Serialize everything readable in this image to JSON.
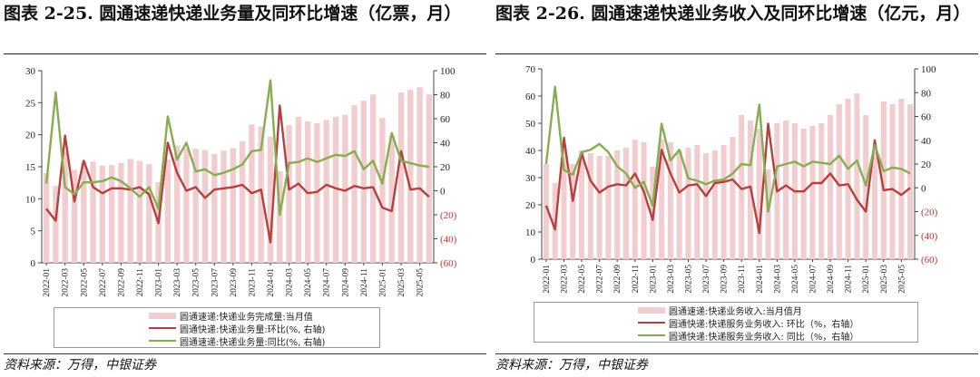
{
  "left": {
    "title": "图表 2-25. 圆通速递快递业务量及同环比增速（亿票，月）",
    "source": "资料来源：万得，中银证券",
    "legend": [
      "圆通速递:快递业务完成量:当月值",
      "圆通快递:快递业务量:环比(%, 右轴)",
      "圆通速递:快递业务量:同比(%, 右轴)"
    ]
  },
  "right": {
    "title": "图表 2-26. 圆通速递快递业务收入及同环比增速（亿元，月）",
    "source": "资料来源：万得，中银证券",
    "legend": [
      "圆通速递:快递业务收入:当月值月",
      "圆通快递:快递服务业务收入: 环比（%，右轴）",
      "圆通快递:快递服务业务收入: 同比（%，右轴）"
    ]
  },
  "colors": {
    "bar": "#f2cdd0",
    "mom": "#b5403e",
    "yoy": "#86ad50",
    "right_axis_negative": "#c0392b"
  },
  "chart_data": [
    {
      "type": "bar",
      "title": "圆通速递快递业务量及同环比增速（亿票，月）",
      "x": [
        "2022-01",
        "2022-02",
        "2022-03",
        "2022-04",
        "2022-05",
        "2022-06",
        "2022-07",
        "2022-08",
        "2022-09",
        "2022-10",
        "2022-11",
        "2022-12",
        "2023-01",
        "2023-02",
        "2023-03",
        "2023-04",
        "2023-05",
        "2023-06",
        "2023-07",
        "2023-08",
        "2023-09",
        "2023-10",
        "2023-11",
        "2023-12",
        "2024-01",
        "2024-02",
        "2024-03",
        "2024-04",
        "2024-05",
        "2024-06",
        "2024-07",
        "2024-08",
        "2024-09",
        "2024-10",
        "2024-11",
        "2024-12",
        "2025-01",
        "2025-02",
        "2025-03",
        "2025-04",
        "2025-05",
        "2025-06"
      ],
      "x_tick_labels": [
        "2022-01",
        "2022-03",
        "2022-05",
        "2022-07",
        "2022-09",
        "2022-11",
        "2023-01",
        "2023-03",
        "2023-05",
        "2023-07",
        "2023-09",
        "2023-11",
        "2024-01",
        "2024-03",
        "2024-05",
        "2024-07",
        "2024-09",
        "2024-11",
        "2025-01",
        "2025-03",
        "2025-05"
      ],
      "left_axis": {
        "ylim": [
          0,
          30
        ],
        "ticks": [
          "0",
          "5",
          "10",
          "15",
          "20",
          "25",
          "30"
        ]
      },
      "right_axis": {
        "ylim": [
          -60,
          100
        ],
        "ticks": [
          {
            "v": -60,
            "label": "(60)"
          },
          {
            "v": -40,
            "label": "(40)"
          },
          {
            "v": -20,
            "label": "(20)"
          },
          {
            "v": 0,
            "label": "0"
          },
          {
            "v": 20,
            "label": "20"
          },
          {
            "v": 40,
            "label": "40"
          },
          {
            "v": 60,
            "label": "60"
          },
          {
            "v": 80,
            "label": "80"
          },
          {
            "v": 100,
            "label": "100"
          }
        ]
      },
      "series": [
        {
          "name": "圆通速递:快递业务完成量:当月值",
          "axis": "left",
          "kind": "bar",
          "values": [
            14.0,
            12.0,
            17.3,
            14.5,
            15.8,
            15.8,
            15.2,
            15.3,
            15.6,
            16.2,
            15.9,
            15.4,
            12.6,
            16.1,
            18.3,
            17.9,
            17.8,
            17.6,
            17.0,
            17.5,
            17.9,
            19.0,
            21.6,
            21.3,
            19.7,
            14.3,
            21.5,
            22.8,
            22.1,
            21.8,
            22.3,
            22.8,
            23.1,
            24.6,
            25.3,
            26.3,
            22.6,
            19.9,
            26.6,
            27.0,
            27.4,
            26.3
          ]
        },
        {
          "name": "圆通快递:快递业务量:环比(%, 右轴)",
          "axis": "right",
          "kind": "line",
          "values": [
            -15,
            -25,
            46,
            -9,
            25,
            3,
            -2,
            2,
            2,
            1,
            3,
            -3,
            -27,
            40,
            15,
            0,
            3,
            -6,
            1,
            2,
            3,
            5,
            -2,
            1,
            -43,
            71,
            1,
            6,
            -2,
            -1,
            5,
            2,
            0,
            4,
            2,
            3,
            -14,
            -17,
            33,
            1,
            2,
            -5
          ]
        },
        {
          "name": "圆通速递:快递业务量:同比(%, 右轴)",
          "axis": "right",
          "kind": "line",
          "values": [
            6,
            82,
            3,
            -3,
            7,
            7,
            8,
            11,
            8,
            2,
            -5,
            3,
            -15,
            62,
            26,
            40,
            16,
            18,
            13,
            15,
            18,
            22,
            33,
            34,
            92,
            -20,
            23,
            24,
            27,
            24,
            27,
            30,
            29,
            33,
            18,
            25,
            6,
            48,
            25,
            23,
            21,
            20
          ]
        }
      ]
    },
    {
      "type": "bar",
      "title": "圆通速递快递业务收入及同环比增速（亿元，月）",
      "x": [
        "2022-01",
        "2022-02",
        "2022-03",
        "2022-04",
        "2022-05",
        "2022-06",
        "2022-07",
        "2022-08",
        "2022-09",
        "2022-10",
        "2022-11",
        "2022-12",
        "2023-01",
        "2023-02",
        "2023-03",
        "2023-04",
        "2023-05",
        "2023-06",
        "2023-07",
        "2023-08",
        "2023-09",
        "2023-10",
        "2023-11",
        "2023-12",
        "2024-01",
        "2024-02",
        "2024-03",
        "2024-04",
        "2024-05",
        "2024-06",
        "2024-07",
        "2024-08",
        "2024-09",
        "2024-10",
        "2024-11",
        "2024-12",
        "2025-01",
        "2025-02",
        "2025-03",
        "2025-04",
        "2025-05",
        "2025-06"
      ],
      "x_tick_labels": [
        "2022-01",
        "2022-03",
        "2022-05",
        "2022-07",
        "2022-09",
        "2022-11",
        "2023-01",
        "2023-03",
        "2023-05",
        "2023-07",
        "2023-09",
        "2023-11",
        "2024-01",
        "2024-03",
        "2024-05",
        "2024-07",
        "2024-09",
        "2024-11",
        "2025-01",
        "2025-03",
        "2025-05"
      ],
      "left_axis": {
        "ylim": [
          0,
          70
        ],
        "ticks": [
          "0",
          "10",
          "20",
          "30",
          "40",
          "50",
          "60",
          "70"
        ]
      },
      "right_axis": {
        "ylim": [
          -60,
          100
        ],
        "ticks": [
          {
            "v": -60,
            "label": "(60)"
          },
          {
            "v": -40,
            "label": "(40)"
          },
          {
            "v": -20,
            "label": "(20)"
          },
          {
            "v": 0,
            "label": "0"
          },
          {
            "v": 20,
            "label": "20"
          },
          {
            "v": 40,
            "label": "40"
          },
          {
            "v": 60,
            "label": "60"
          },
          {
            "v": 80,
            "label": "80"
          },
          {
            "v": 100,
            "label": "100"
          }
        ]
      },
      "series": [
        {
          "name": "圆通速递:快递业务收入:当月值月",
          "axis": "left",
          "kind": "bar",
          "values": [
            35,
            28,
            41,
            35,
            40,
            39,
            38,
            38,
            40,
            41,
            44,
            43,
            34,
            44,
            43,
            40,
            41,
            42,
            39,
            40,
            42,
            45,
            53,
            51,
            48,
            33,
            50,
            51,
            50,
            48,
            49,
            50,
            53,
            57,
            59,
            61,
            53,
            40,
            58,
            57,
            59,
            57
          ]
        },
        {
          "name": "圆通快递:快递服务业务收入: 环比（%，右轴）",
          "axis": "right",
          "kind": "line",
          "values": [
            -15,
            -35,
            42,
            -11,
            29,
            6,
            -4,
            1,
            3,
            2,
            12,
            -3,
            -27,
            32,
            12,
            -4,
            2,
            3,
            -7,
            4,
            5,
            7,
            -1,
            1,
            -38,
            54,
            -3,
            2,
            -3,
            -3,
            4,
            4,
            12,
            2,
            3,
            -10,
            -20,
            40,
            -2,
            -1,
            -6,
            0
          ]
        },
        {
          "name": "圆通快递:快递服务业务收入: 同比（%，右轴）",
          "axis": "right",
          "kind": "line",
          "values": [
            20,
            85,
            15,
            11,
            30,
            32,
            37,
            30,
            18,
            12,
            0,
            5,
            -15,
            54,
            23,
            32,
            8,
            6,
            3,
            6,
            7,
            12,
            20,
            19,
            70,
            -20,
            18,
            20,
            22,
            18,
            22,
            21,
            20,
            27,
            16,
            23,
            2,
            36,
            14,
            17,
            16,
            12
          ]
        }
      ]
    }
  ]
}
